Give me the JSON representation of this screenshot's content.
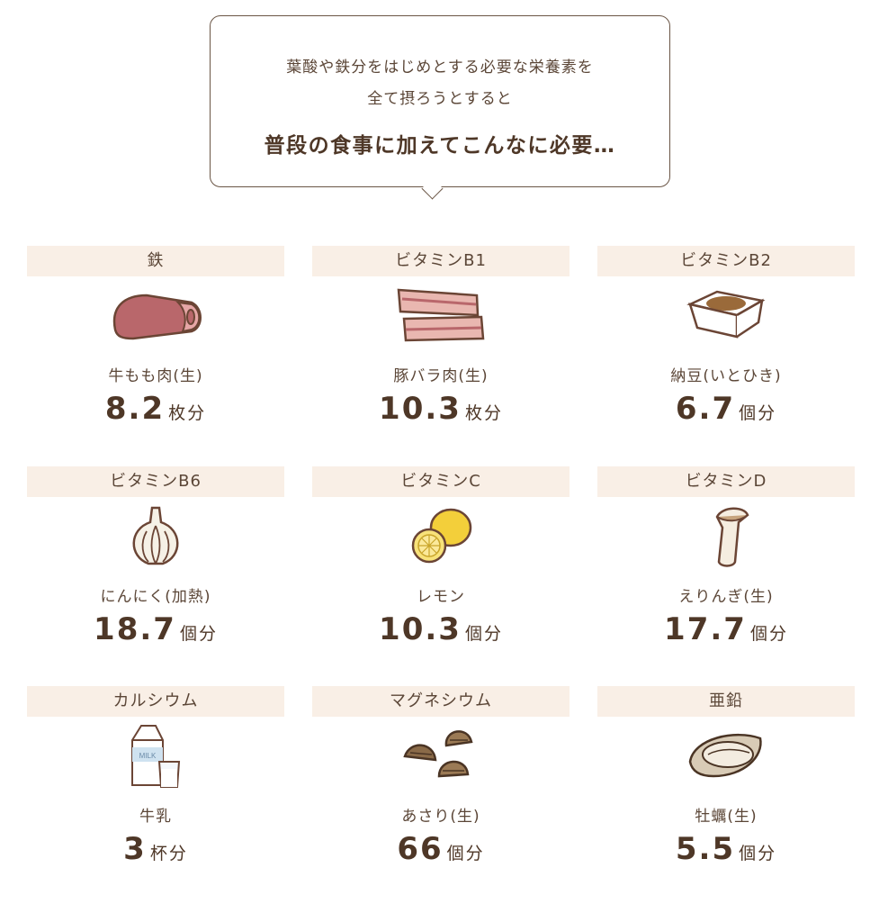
{
  "intro": {
    "line1": "葉酸や鉄分をはじめとする必要な栄養素を",
    "line2": "全て摂ろうとすると",
    "emphasis": "普段の食事に加えてこんなに必要…"
  },
  "nutrients": [
    {
      "nutrient": "鉄",
      "food": "牛もも肉(生)",
      "amount": "8.2",
      "unit": "枚分",
      "icon": "beef-icon"
    },
    {
      "nutrient": "ビタミンB1",
      "food": "豚バラ肉(生)",
      "amount": "10.3",
      "unit": "枚分",
      "icon": "pork-belly-icon"
    },
    {
      "nutrient": "ビタミンB2",
      "food": "納豆(いとひき)",
      "amount": "6.7",
      "unit": "個分",
      "icon": "natto-icon"
    },
    {
      "nutrient": "ビタミンB6",
      "food": "にんにく(加熱)",
      "amount": "18.7",
      "unit": "個分",
      "icon": "garlic-icon"
    },
    {
      "nutrient": "ビタミンC",
      "food": "レモン",
      "amount": "10.3",
      "unit": "個分",
      "icon": "lemon-icon"
    },
    {
      "nutrient": "ビタミンD",
      "food": "えりんぎ(生)",
      "amount": "17.7",
      "unit": "個分",
      "icon": "eryngii-mushroom-icon"
    },
    {
      "nutrient": "カルシウム",
      "food": "牛乳",
      "amount": "3",
      "unit": "杯分",
      "icon": "milk-icon"
    },
    {
      "nutrient": "マグネシウム",
      "food": "あさり(生)",
      "amount": "66",
      "unit": "個分",
      "icon": "clam-icon"
    },
    {
      "nutrient": "亜鉛",
      "food": "牡蠣(生)",
      "amount": "5.5",
      "unit": "個分",
      "icon": "oyster-icon"
    }
  ],
  "milk_label": "MILK",
  "colors": {
    "text": "#5b4637",
    "emphasis": "#4e3727",
    "header_bg": "#f9efe6"
  }
}
